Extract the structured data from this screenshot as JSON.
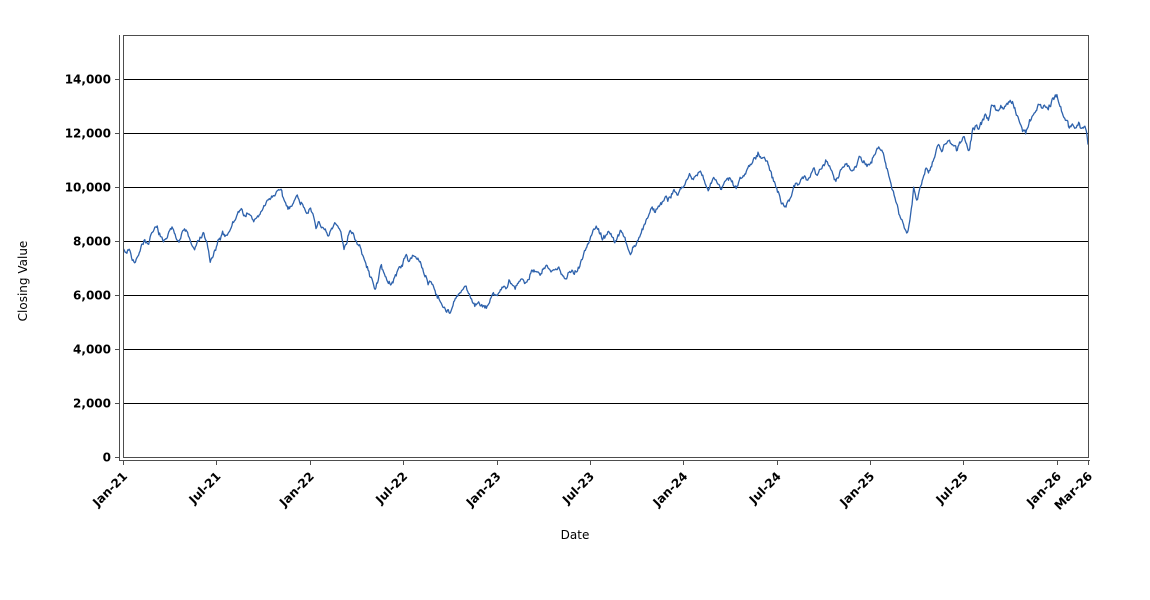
{
  "chart_data": {
    "type": "line",
    "title": "",
    "xlabel": "Date",
    "ylabel": "Closing Value",
    "legend": "none",
    "grid": "horizontal-solid-black",
    "background_color": "#ffffff",
    "axis_color": "#4d4d4d",
    "grid_color": "#000000",
    "text_color": "#000000",
    "x_tick_labels": [
      "Jan-21",
      "Jul-21",
      "Jan-22",
      "Jul-22",
      "Jan-23",
      "Jul-23",
      "Jan-24",
      "Jul-24",
      "Jan-25",
      "Jul-25",
      "Jan-26",
      "Mar-26"
    ],
    "x_tick_months": [
      0,
      6,
      12,
      18,
      24,
      30,
      36,
      42,
      48,
      54,
      60,
      62
    ],
    "y_ticks": [
      0,
      2000,
      4000,
      6000,
      8000,
      10000,
      12000,
      14000
    ],
    "y_tick_labels": [
      "0",
      "2,000",
      "4,000",
      "6,000",
      "8,000",
      "10,000",
      "12,000",
      "14,000"
    ],
    "xlim_months": [
      0,
      62
    ],
    "ylim": [
      0,
      15630
    ],
    "series": [
      {
        "name": "Closing Value",
        "color": "#2e62ac",
        "style": "noisy-daily-line",
        "points_month_value": [
          [
            0,
            7700
          ],
          [
            0.2,
            7550
          ],
          [
            0.4,
            7750
          ],
          [
            0.6,
            7450
          ],
          [
            0.8,
            7250
          ],
          [
            1,
            7550
          ],
          [
            1.2,
            7900
          ],
          [
            1.4,
            8100
          ],
          [
            1.6,
            7850
          ],
          [
            1.8,
            8150
          ],
          [
            2,
            8300
          ],
          [
            2.2,
            8450
          ],
          [
            2.4,
            8150
          ],
          [
            2.6,
            7900
          ],
          [
            2.8,
            8150
          ],
          [
            3,
            8350
          ],
          [
            3.2,
            8450
          ],
          [
            3.4,
            8250
          ],
          [
            3.6,
            8050
          ],
          [
            3.8,
            8300
          ],
          [
            4,
            8400
          ],
          [
            4.2,
            8200
          ],
          [
            4.4,
            7900
          ],
          [
            4.6,
            7650
          ],
          [
            4.8,
            7900
          ],
          [
            5,
            8150
          ],
          [
            5.2,
            8250
          ],
          [
            5.4,
            7900
          ],
          [
            5.6,
            7200
          ],
          [
            5.8,
            7450
          ],
          [
            6,
            7700
          ],
          [
            6.2,
            8000
          ],
          [
            6.4,
            8250
          ],
          [
            6.6,
            8150
          ],
          [
            6.8,
            8400
          ],
          [
            7,
            8600
          ],
          [
            7.2,
            8800
          ],
          [
            7.4,
            9050
          ],
          [
            7.6,
            9150
          ],
          [
            7.8,
            8950
          ],
          [
            8,
            9100
          ],
          [
            8.2,
            8850
          ],
          [
            8.4,
            8700
          ],
          [
            8.6,
            8900
          ],
          [
            8.8,
            9050
          ],
          [
            9,
            9150
          ],
          [
            9.2,
            9350
          ],
          [
            9.4,
            9550
          ],
          [
            9.6,
            9650
          ],
          [
            9.8,
            9800
          ],
          [
            10,
            9880
          ],
          [
            10.2,
            9750
          ],
          [
            10.4,
            9300
          ],
          [
            10.6,
            9150
          ],
          [
            10.8,
            9400
          ],
          [
            11,
            9550
          ],
          [
            11.2,
            9680
          ],
          [
            11.4,
            9500
          ],
          [
            11.6,
            9300
          ],
          [
            11.8,
            9150
          ],
          [
            12,
            9250
          ],
          [
            12.2,
            8900
          ],
          [
            12.4,
            8500
          ],
          [
            12.6,
            8750
          ],
          [
            12.8,
            8550
          ],
          [
            13,
            8300
          ],
          [
            13.2,
            8100
          ],
          [
            13.4,
            8350
          ],
          [
            13.6,
            8600
          ],
          [
            13.8,
            8450
          ],
          [
            14,
            8250
          ],
          [
            14.2,
            7800
          ],
          [
            14.4,
            8100
          ],
          [
            14.6,
            8500
          ],
          [
            14.8,
            8300
          ],
          [
            15,
            8000
          ],
          [
            15.2,
            7750
          ],
          [
            15.4,
            7450
          ],
          [
            15.6,
            7100
          ],
          [
            15.8,
            6800
          ],
          [
            16,
            6550
          ],
          [
            16.2,
            6300
          ],
          [
            16.4,
            6550
          ],
          [
            16.6,
            7100
          ],
          [
            16.8,
            6800
          ],
          [
            17,
            6450
          ],
          [
            17.2,
            6300
          ],
          [
            17.4,
            6600
          ],
          [
            17.6,
            6850
          ],
          [
            17.8,
            7050
          ],
          [
            18,
            7250
          ],
          [
            18.2,
            7400
          ],
          [
            18.4,
            7300
          ],
          [
            18.6,
            7500
          ],
          [
            18.8,
            7450
          ],
          [
            19,
            7300
          ],
          [
            19.2,
            7000
          ],
          [
            19.4,
            6700
          ],
          [
            19.6,
            6450
          ],
          [
            19.8,
            6550
          ],
          [
            20,
            6300
          ],
          [
            20.2,
            6000
          ],
          [
            20.4,
            5850
          ],
          [
            20.6,
            5600
          ],
          [
            20.8,
            5500
          ],
          [
            21,
            5400
          ],
          [
            21.2,
            5600
          ],
          [
            21.4,
            5850
          ],
          [
            21.6,
            6000
          ],
          [
            21.8,
            6150
          ],
          [
            22,
            6250
          ],
          [
            22.2,
            6000
          ],
          [
            22.4,
            5800
          ],
          [
            22.6,
            5650
          ],
          [
            22.8,
            5750
          ],
          [
            23,
            5600
          ],
          [
            23.2,
            5450
          ],
          [
            23.4,
            5550
          ],
          [
            23.6,
            5850
          ],
          [
            23.8,
            6050
          ],
          [
            24,
            5950
          ],
          [
            24.2,
            6150
          ],
          [
            24.4,
            6350
          ],
          [
            24.6,
            6200
          ],
          [
            24.8,
            6400
          ],
          [
            25,
            6300
          ],
          [
            25.2,
            6150
          ],
          [
            25.4,
            6400
          ],
          [
            25.6,
            6600
          ],
          [
            25.8,
            6500
          ],
          [
            26,
            6700
          ],
          [
            26.2,
            6900
          ],
          [
            26.4,
            7050
          ],
          [
            26.6,
            6850
          ],
          [
            26.8,
            6700
          ],
          [
            27,
            6900
          ],
          [
            27.2,
            7050
          ],
          [
            27.4,
            6900
          ],
          [
            27.6,
            6750
          ],
          [
            27.8,
            6900
          ],
          [
            28,
            7000
          ],
          [
            28.2,
            6850
          ],
          [
            28.4,
            6700
          ],
          [
            28.6,
            6850
          ],
          [
            28.8,
            6950
          ],
          [
            29,
            6850
          ],
          [
            29.2,
            7000
          ],
          [
            29.4,
            7250
          ],
          [
            29.6,
            7550
          ],
          [
            29.8,
            7800
          ],
          [
            30,
            8050
          ],
          [
            30.2,
            8300
          ],
          [
            30.4,
            8600
          ],
          [
            30.6,
            8350
          ],
          [
            30.8,
            8100
          ],
          [
            31,
            8250
          ],
          [
            31.2,
            8400
          ],
          [
            31.4,
            8200
          ],
          [
            31.6,
            7950
          ],
          [
            31.8,
            8150
          ],
          [
            32,
            8300
          ],
          [
            32.2,
            8100
          ],
          [
            32.4,
            7850
          ],
          [
            32.6,
            7550
          ],
          [
            32.8,
            7800
          ],
          [
            33,
            8000
          ],
          [
            33.2,
            8200
          ],
          [
            33.4,
            8450
          ],
          [
            33.6,
            8700
          ],
          [
            33.8,
            9000
          ],
          [
            34,
            9250
          ],
          [
            34.2,
            9100
          ],
          [
            34.4,
            9300
          ],
          [
            34.6,
            9450
          ],
          [
            34.8,
            9600
          ],
          [
            35,
            9550
          ],
          [
            35.2,
            9750
          ],
          [
            35.4,
            9900
          ],
          [
            35.6,
            9800
          ],
          [
            35.8,
            9950
          ],
          [
            36,
            10050
          ],
          [
            36.2,
            10300
          ],
          [
            36.4,
            10450
          ],
          [
            36.6,
            10250
          ],
          [
            36.8,
            10400
          ],
          [
            37,
            10550
          ],
          [
            37.2,
            10400
          ],
          [
            37.4,
            10200
          ],
          [
            37.6,
            9950
          ],
          [
            37.8,
            10150
          ],
          [
            38,
            10300
          ],
          [
            38.2,
            10100
          ],
          [
            38.4,
            9850
          ],
          [
            38.6,
            10050
          ],
          [
            38.8,
            10200
          ],
          [
            39,
            10350
          ],
          [
            39.2,
            10150
          ],
          [
            39.4,
            9950
          ],
          [
            39.6,
            10200
          ],
          [
            39.8,
            10400
          ],
          [
            40,
            10600
          ],
          [
            40.2,
            10800
          ],
          [
            40.4,
            11000
          ],
          [
            40.6,
            11150
          ],
          [
            40.8,
            11250
          ],
          [
            41,
            11150
          ],
          [
            41.2,
            11250
          ],
          [
            41.4,
            11000
          ],
          [
            41.6,
            10600
          ],
          [
            41.8,
            10200
          ],
          [
            42,
            9900
          ],
          [
            42.2,
            9600
          ],
          [
            42.4,
            9300
          ],
          [
            42.6,
            9200
          ],
          [
            42.8,
            9550
          ],
          [
            43,
            9900
          ],
          [
            43.2,
            10100
          ],
          [
            43.4,
            9950
          ],
          [
            43.6,
            10250
          ],
          [
            43.8,
            10450
          ],
          [
            44,
            10300
          ],
          [
            44.2,
            10550
          ],
          [
            44.4,
            10700
          ],
          [
            44.6,
            10500
          ],
          [
            44.8,
            10650
          ],
          [
            45,
            10850
          ],
          [
            45.2,
            11000
          ],
          [
            45.4,
            10750
          ],
          [
            45.6,
            10500
          ],
          [
            45.8,
            10300
          ],
          [
            46,
            10550
          ],
          [
            46.2,
            10750
          ],
          [
            46.4,
            10950
          ],
          [
            46.6,
            10800
          ],
          [
            46.8,
            10650
          ],
          [
            47,
            10850
          ],
          [
            47.2,
            11000
          ],
          [
            47.4,
            11100
          ],
          [
            47.6,
            10900
          ],
          [
            47.8,
            10750
          ],
          [
            48,
            10950
          ],
          [
            48.2,
            11200
          ],
          [
            48.4,
            11400
          ],
          [
            48.6,
            11500
          ],
          [
            48.8,
            11250
          ],
          [
            49,
            10900
          ],
          [
            49.2,
            10400
          ],
          [
            49.4,
            10000
          ],
          [
            49.6,
            9600
          ],
          [
            49.8,
            9200
          ],
          [
            50,
            8800
          ],
          [
            50.2,
            8350
          ],
          [
            50.4,
            8200
          ],
          [
            50.6,
            9000
          ],
          [
            50.8,
            9900
          ],
          [
            51,
            9400
          ],
          [
            51.2,
            9900
          ],
          [
            51.4,
            10400
          ],
          [
            51.6,
            10800
          ],
          [
            51.8,
            10650
          ],
          [
            52,
            11000
          ],
          [
            52.2,
            11300
          ],
          [
            52.4,
            11500
          ],
          [
            52.6,
            11350
          ],
          [
            52.8,
            11600
          ],
          [
            53,
            11750
          ],
          [
            53.2,
            11600
          ],
          [
            53.4,
            11450
          ],
          [
            53.6,
            11300
          ],
          [
            53.8,
            11600
          ],
          [
            54,
            11750
          ],
          [
            54.2,
            11550
          ],
          [
            54.4,
            11400
          ],
          [
            54.6,
            12200
          ],
          [
            54.8,
            12350
          ],
          [
            55,
            12150
          ],
          [
            55.2,
            12400
          ],
          [
            55.4,
            12650
          ],
          [
            55.6,
            12500
          ],
          [
            55.8,
            12950
          ],
          [
            56,
            13100
          ],
          [
            56.2,
            12850
          ],
          [
            56.4,
            13050
          ],
          [
            56.6,
            12900
          ],
          [
            56.8,
            13150
          ],
          [
            57,
            13300
          ],
          [
            57.2,
            13050
          ],
          [
            57.4,
            12700
          ],
          [
            57.6,
            12400
          ],
          [
            57.8,
            12100
          ],
          [
            58,
            12050
          ],
          [
            58.2,
            12350
          ],
          [
            58.4,
            12650
          ],
          [
            58.6,
            12900
          ],
          [
            58.8,
            13050
          ],
          [
            59,
            12950
          ],
          [
            59.2,
            13150
          ],
          [
            59.4,
            12850
          ],
          [
            59.6,
            13100
          ],
          [
            59.8,
            13300
          ],
          [
            60,
            13450
          ],
          [
            60.2,
            13000
          ],
          [
            60.4,
            12700
          ],
          [
            60.6,
            12450
          ],
          [
            60.8,
            12250
          ],
          [
            61,
            12400
          ],
          [
            61.2,
            12150
          ],
          [
            61.4,
            12350
          ],
          [
            61.6,
            12200
          ],
          [
            61.8,
            12300
          ],
          [
            61.9,
            12150
          ],
          [
            62,
            11600
          ]
        ]
      }
    ]
  },
  "labels": {
    "xlabel": "Date",
    "ylabel": "Closing Value"
  }
}
